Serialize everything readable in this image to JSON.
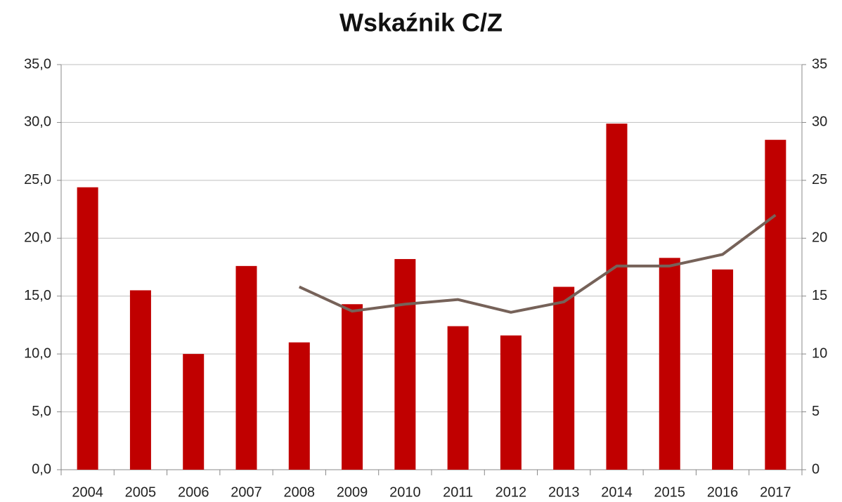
{
  "chart_data": {
    "type": "bar_line",
    "title": "Wskaźnik C/Z",
    "categories": [
      "2004",
      "2005",
      "2006",
      "2007",
      "2008",
      "2009",
      "2010",
      "2011",
      "2012",
      "2013",
      "2014",
      "2015",
      "2016",
      "2017"
    ],
    "series": [
      {
        "type": "bar",
        "color": "#c00000",
        "values": [
          24.4,
          15.5,
          10.0,
          17.6,
          11.0,
          14.3,
          18.2,
          12.4,
          11.6,
          15.8,
          29.9,
          18.3,
          17.3,
          28.5
        ]
      },
      {
        "type": "line",
        "axis": "y2",
        "color": "#766259",
        "values": [
          null,
          null,
          null,
          null,
          15.8,
          13.7,
          14.3,
          14.7,
          13.6,
          14.5,
          17.6,
          17.6,
          18.6,
          22.0
        ]
      }
    ],
    "ylim": [
      0,
      35
    ],
    "yticks": [
      {
        "value": 0,
        "label": "0,0"
      },
      {
        "value": 5,
        "label": "5,0"
      },
      {
        "value": 10,
        "label": "10,0"
      },
      {
        "value": 15,
        "label": "15,0"
      },
      {
        "value": 20,
        "label": "20,0"
      },
      {
        "value": 25,
        "label": "25,0"
      },
      {
        "value": 30,
        "label": "30,0"
      },
      {
        "value": 35,
        "label": "35,0"
      }
    ],
    "y2lim": [
      0,
      35
    ],
    "y2ticks": [
      0,
      5,
      10,
      15,
      20,
      25,
      30,
      35
    ],
    "grid": true
  }
}
